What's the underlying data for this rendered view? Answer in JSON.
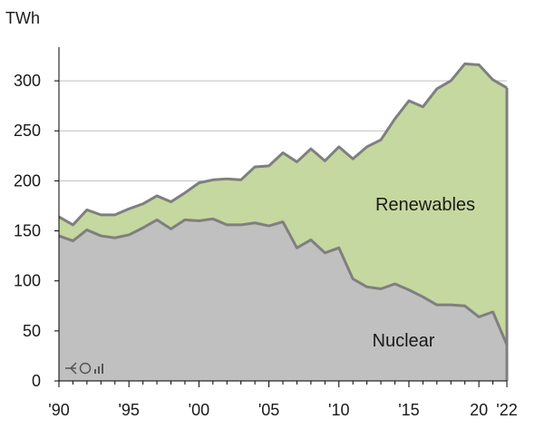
{
  "chart_data": {
    "type": "area",
    "stacked": true,
    "ylabel": "TWh",
    "ylim": [
      0,
      330
    ],
    "yticks": [
      0,
      50,
      100,
      150,
      200,
      250,
      300
    ],
    "grid": "horizontal",
    "xtick_labels": [
      {
        "x": 1990,
        "label": "'90"
      },
      {
        "x": 1995,
        "label": "'95"
      },
      {
        "x": 2000,
        "label": "'00"
      },
      {
        "x": 2005,
        "label": "'05"
      },
      {
        "x": 2010,
        "label": "'10"
      },
      {
        "x": 2015,
        "label": "'15"
      },
      {
        "x": 2020,
        "label": "20"
      },
      {
        "x": 2022,
        "label": "'22"
      }
    ],
    "x": [
      1990,
      1991,
      1992,
      1993,
      1994,
      1995,
      1996,
      1997,
      1998,
      1999,
      2000,
      2001,
      2002,
      2003,
      2004,
      2005,
      2006,
      2007,
      2008,
      2009,
      2010,
      2011,
      2012,
      2013,
      2014,
      2015,
      2016,
      2017,
      2018,
      2019,
      2020,
      2021,
      2022
    ],
    "series": [
      {
        "name": "Nuclear",
        "color": "#c0c0c0",
        "values": [
          145,
          140,
          151,
          145,
          143,
          146,
          153,
          161,
          152,
          161,
          160,
          162,
          156,
          156,
          158,
          155,
          159,
          133,
          141,
          128,
          133,
          102,
          94,
          92,
          97,
          91,
          84,
          76,
          76,
          75,
          64,
          69,
          36
        ]
      },
      {
        "name": "Renewables",
        "color": "#c5d89f",
        "values": [
          19,
          16,
          20,
          21,
          23,
          26,
          24,
          24,
          27,
          27,
          38,
          39,
          46,
          45,
          56,
          60,
          69,
          86,
          91,
          92,
          101,
          120,
          140,
          149,
          165,
          189,
          190,
          216,
          224,
          242,
          252,
          232,
          257
        ]
      }
    ],
    "line_color": "#7f7f7f",
    "watermark": "logo"
  }
}
